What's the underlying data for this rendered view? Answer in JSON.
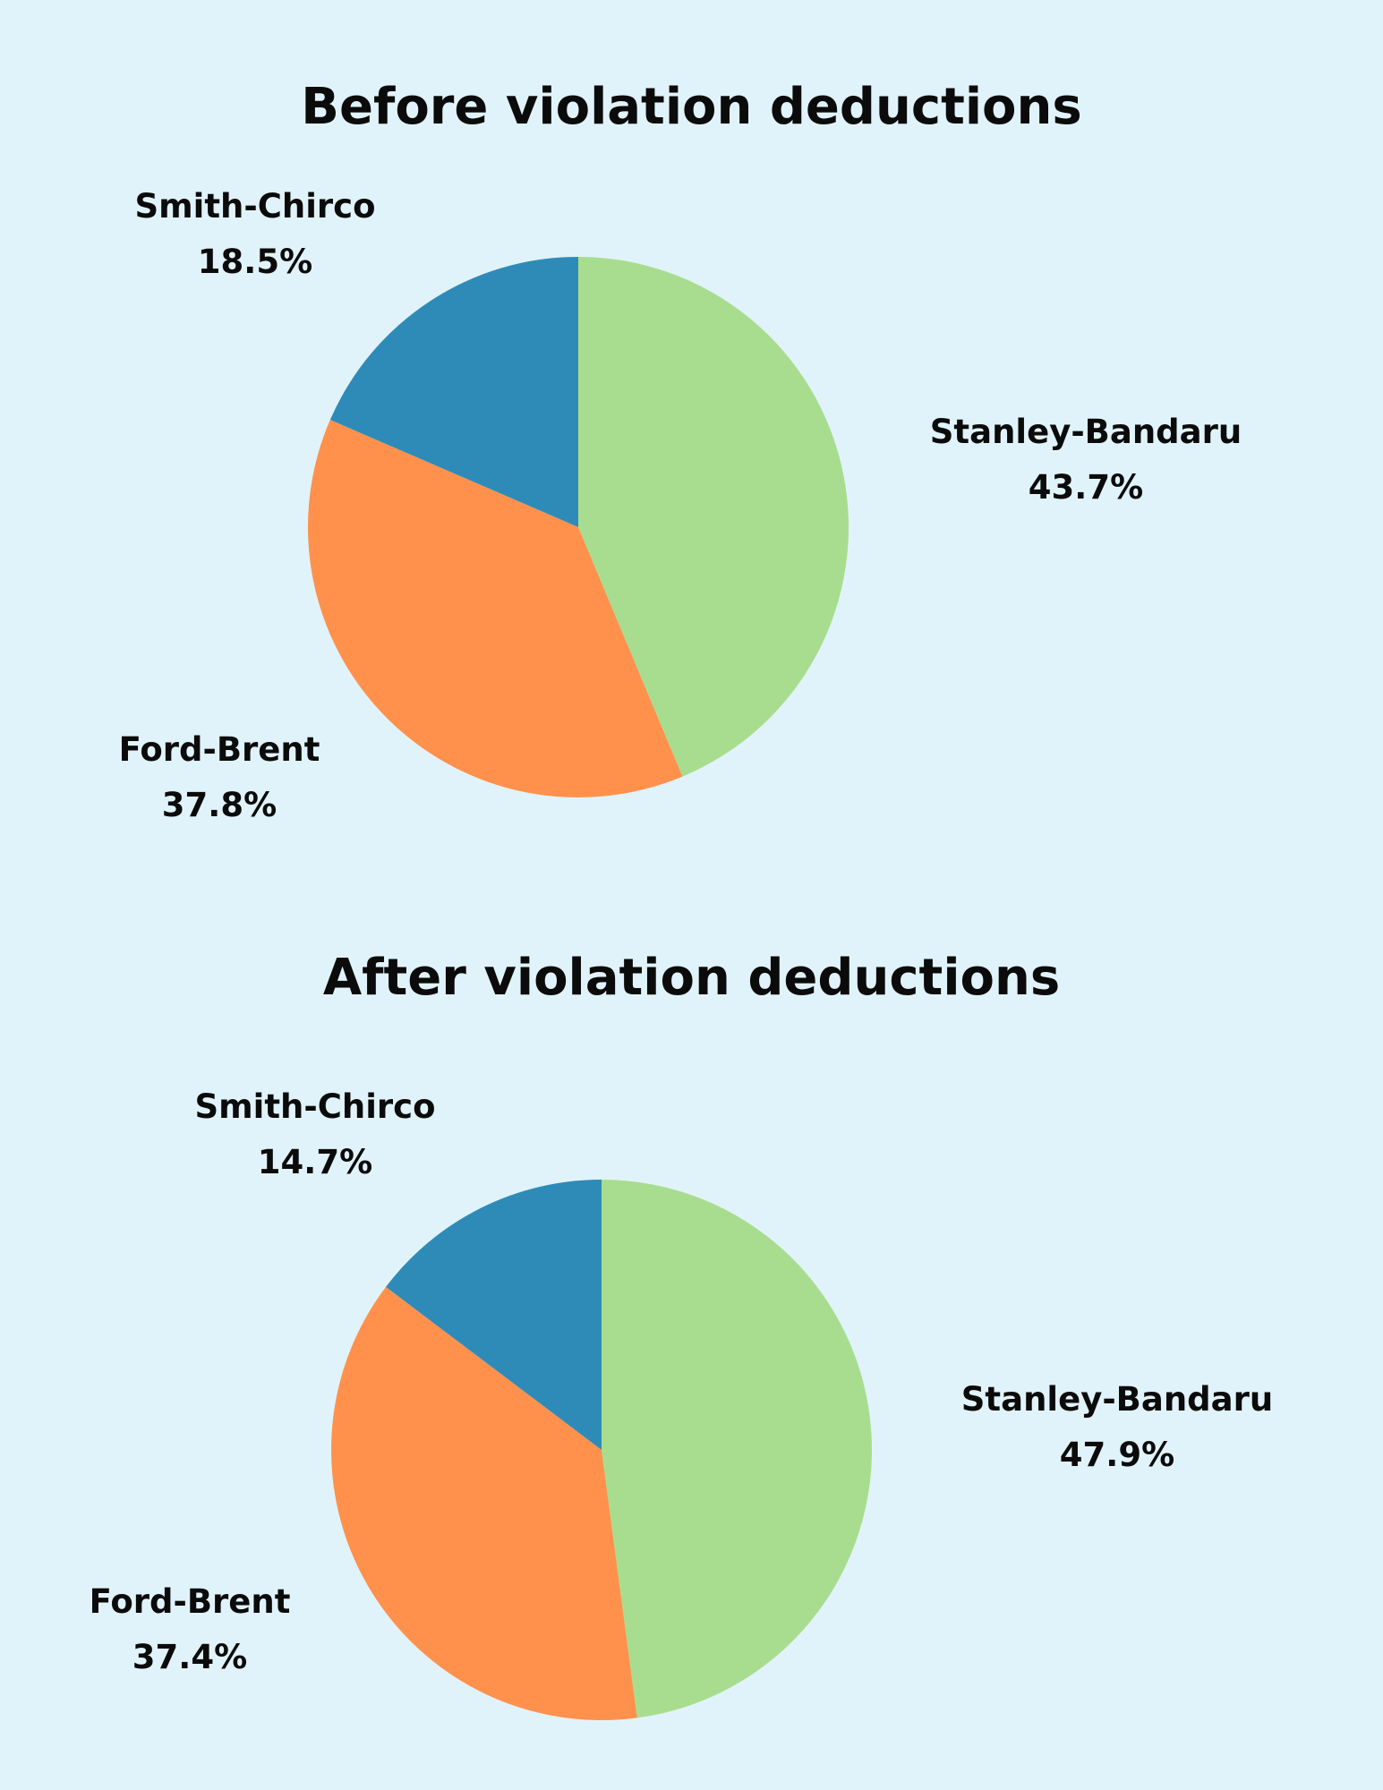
{
  "chart_data": [
    {
      "type": "pie",
      "title": "Before violation deductions",
      "slices": [
        {
          "label": "Stanley-Bandaru",
          "value": 43.7,
          "value_label": "43.7%",
          "color": "#a8dd8f"
        },
        {
          "label": "Ford-Brent",
          "value": 37.8,
          "value_label": "37.8%",
          "color": "#ff914d"
        },
        {
          "label": "Smith-Chirco",
          "value": 18.5,
          "value_label": "18.5%",
          "color": "#2e8bb8"
        }
      ],
      "start": "top",
      "direction": "clockwise"
    },
    {
      "type": "pie",
      "title": "After violation deductions",
      "slices": [
        {
          "label": "Stanley-Bandaru",
          "value": 47.9,
          "value_label": "47.9%",
          "color": "#a8dd8f"
        },
        {
          "label": "Ford-Brent",
          "value": 37.4,
          "value_label": "37.4%",
          "color": "#ff914d"
        },
        {
          "label": "Smith-Chirco",
          "value": 14.7,
          "value_label": "14.7%",
          "color": "#2e8bb8"
        }
      ],
      "start": "top",
      "direction": "clockwise"
    }
  ]
}
